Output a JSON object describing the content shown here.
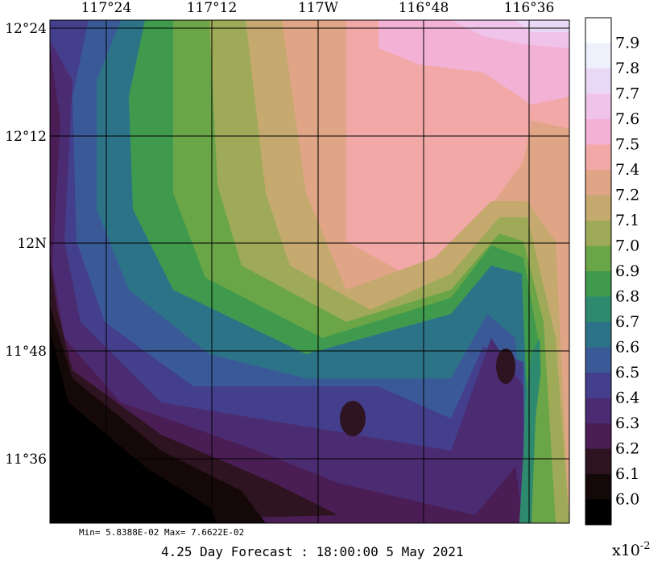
{
  "map": {
    "lon_labels": [
      "117°24",
      "117°12",
      "117W",
      "116°48",
      "116°36"
    ],
    "lat_labels": [
      "12°24",
      "12°12",
      "12N",
      "11°48",
      "11°36"
    ]
  },
  "colorbar": {
    "labels": [
      "7.9",
      "7.8",
      "7.7",
      "7.6",
      "7.5",
      "7.4",
      "7.2",
      "7.1",
      "7.0",
      "6.9",
      "6.8",
      "6.7",
      "6.6",
      "6.5",
      "6.4",
      "6.3",
      "6.2",
      "6.1",
      "6.0"
    ],
    "colors_top_to_bottom": [
      "#ffffff",
      "#eef0fb",
      "#ead9f6",
      "#f0c3ea",
      "#f3b1d6",
      "#f1a8a6",
      "#e0a586",
      "#c5a96f",
      "#9eaa58",
      "#6aa548",
      "#3f9a4d",
      "#2e8a6e",
      "#2d7388",
      "#3a5a97",
      "#433f8c",
      "#4b2c72",
      "#4a1e54",
      "#2e1420",
      "#150808",
      "#000000"
    ],
    "exponent": "x10",
    "exponent_power": "-2"
  },
  "stats": "Min= 5.8388E-02  Max= 7.6622E-02",
  "footer": "4.25 Day Forecast : 18:00:00   5 May 2021"
}
